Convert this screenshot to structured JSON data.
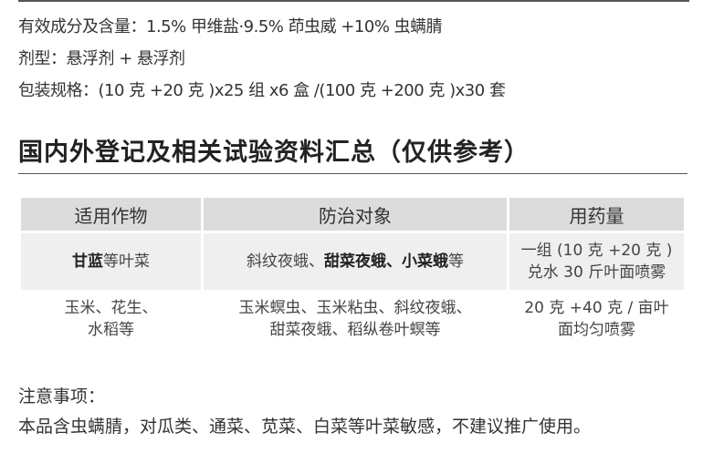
{
  "info": {
    "ingredients": "有效成分及含量：1.5% 甲维盐·9.5% 茚虫威 +10% 虫螨腈",
    "formulation": "剂型：悬浮剂 + 悬浮剂",
    "packaging": "包装规格：(10 克 +20 克 )x25 组 x6 盒 /(100 克 +200 克 )x30 套"
  },
  "heading": "国内外登记及相关试验资料汇总（仅供参考）",
  "table": {
    "headers": [
      "适用作物",
      "防治对象",
      "用药量"
    ],
    "rows": [
      {
        "crop": [
          {
            "t": "甘蓝",
            "b": true
          },
          {
            "t": "等叶菜",
            "b": false
          }
        ],
        "target": [
          {
            "t": "斜纹夜蛾、",
            "b": false
          },
          {
            "t": "甜菜夜蛾、小菜蛾",
            "b": true
          },
          {
            "t": "等",
            "b": false
          }
        ],
        "dose": [
          "一组 (10 克 +20 克 )",
          "兑水 30 斤叶面喷雾"
        ]
      },
      {
        "crop": [
          {
            "t": "玉米、花生、",
            "b": false
          }
        ],
        "crop2": "水稻等",
        "target": [
          {
            "t": "玉米螟虫、玉米粘虫、斜纹夜蛾、",
            "b": false
          }
        ],
        "target2": "甜菜夜蛾、稻纵卷叶螟等",
        "dose": [
          "20 克 +40 克 / 亩叶",
          "面均匀喷雾"
        ]
      }
    ]
  },
  "notes": {
    "title": "注意事项：",
    "text": "本品含虫螨腈，对瓜类、通菜、苋菜、白菜等叶菜敏感，不建议推广使用。"
  }
}
